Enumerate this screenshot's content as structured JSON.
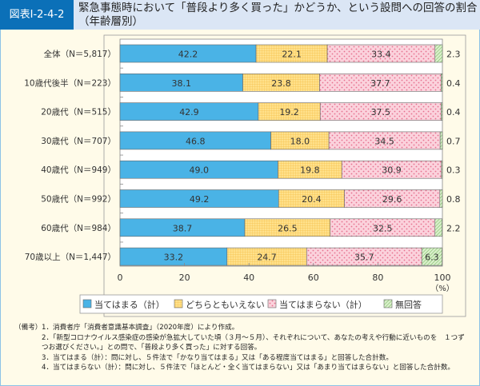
{
  "header": {
    "figure_label": "図表Ⅰ-2-4-2",
    "title": "緊急事態時において「普段より多く買った」かどうか、という設問への回答の割合（年齢層別）"
  },
  "chart_data": {
    "type": "bar",
    "orientation": "horizontal",
    "stacked": true,
    "categories": [
      "全体（N＝5,817）",
      "10歳代後半（N＝223）",
      "20歳代（N＝515）",
      "30歳代（N＝707）",
      "40歳代（N＝949）",
      "50歳代（N＝992）",
      "60歳代（N＝984）",
      "70歳以上（N＝1,447）"
    ],
    "series": [
      {
        "name": "当てはまる（計）",
        "color": "#4ab3e6",
        "values": [
          42.2,
          38.1,
          42.9,
          46.8,
          49.0,
          49.2,
          38.7,
          33.2
        ]
      },
      {
        "name": "どちらともいえない",
        "color": "#ffe18c",
        "values": [
          22.1,
          23.8,
          19.2,
          18.0,
          19.8,
          20.4,
          26.5,
          24.7
        ]
      },
      {
        "name": "当てはまらない（計）",
        "color": "#f9c5d1",
        "values": [
          33.4,
          37.7,
          37.5,
          34.5,
          30.9,
          29.6,
          32.5,
          35.7
        ]
      },
      {
        "name": "無回答",
        "color": "#b7dca2",
        "values": [
          2.3,
          0.4,
          0.4,
          0.7,
          0.3,
          0.8,
          2.2,
          6.3
        ]
      }
    ],
    "xlim": [
      0,
      100
    ],
    "xticks": [
      0,
      20,
      40,
      60,
      80,
      100
    ],
    "xunit": "（%）",
    "legend": "bottom",
    "grid": false
  },
  "notes": [
    {
      "head": "（備考）",
      "text": "1．消費者庁「消費者意識基本調査」（2020年度）により作成。"
    },
    {
      "head": "",
      "text": "2．「新型コロナウイルス感染症の感染が急拡大していた頃（３月～５月）、それぞれについて、あなたの考えや行動に近いものを　１つずつお選びください。」との問で、「普段より多く買った」に対する回答。"
    },
    {
      "head": "",
      "text": "3．当てはまる（計）：問に対し、５件法で「かなり当てはまる」又は「ある程度当てはまる」と回答した合計数。"
    },
    {
      "head": "",
      "text": "4．当てはまらない（計）：問に対し、５件法で「ほとんど・全く当てはまらない」又は「あまり当てはまらない」と回答した合計数。"
    }
  ]
}
